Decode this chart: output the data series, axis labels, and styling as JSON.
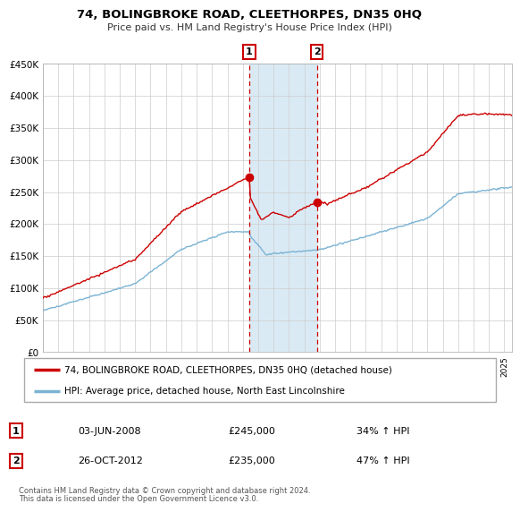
{
  "title": "74, BOLINGBROKE ROAD, CLEETHORPES, DN35 0HQ",
  "subtitle": "Price paid vs. HM Land Registry's House Price Index (HPI)",
  "legend_line1": "74, BOLINGBROKE ROAD, CLEETHORPES, DN35 0HQ (detached house)",
  "legend_line2": "HPI: Average price, detached house, North East Lincolnshire",
  "annotation1_label": "1",
  "annotation1_date": "03-JUN-2008",
  "annotation1_price": "£245,000",
  "annotation1_hpi": "34% ↑ HPI",
  "annotation1_year": 2008.42,
  "annotation1_value": 245000,
  "annotation2_label": "2",
  "annotation2_date": "26-OCT-2012",
  "annotation2_price": "£235,000",
  "annotation2_hpi": "47% ↑ HPI",
  "annotation2_year": 2012.82,
  "annotation2_value": 235000,
  "hpi_color": "#7ab3d4",
  "price_color": "#cc0000",
  "shaded_color": "#daeaf5",
  "annotation_box_color": "#cc0000",
  "ylabel_ticks": [
    "£0",
    "£50K",
    "£100K",
    "£150K",
    "£200K",
    "£250K",
    "£300K",
    "£350K",
    "£400K",
    "£450K"
  ],
  "ylabel_values": [
    0,
    50000,
    100000,
    150000,
    200000,
    250000,
    300000,
    350000,
    400000,
    450000
  ],
  "xmin": 1995.0,
  "xmax": 2025.5,
  "ymin": 0,
  "ymax": 450000,
  "footer1": "Contains HM Land Registry data © Crown copyright and database right 2024.",
  "footer2": "This data is licensed under the Open Government Licence v3.0."
}
